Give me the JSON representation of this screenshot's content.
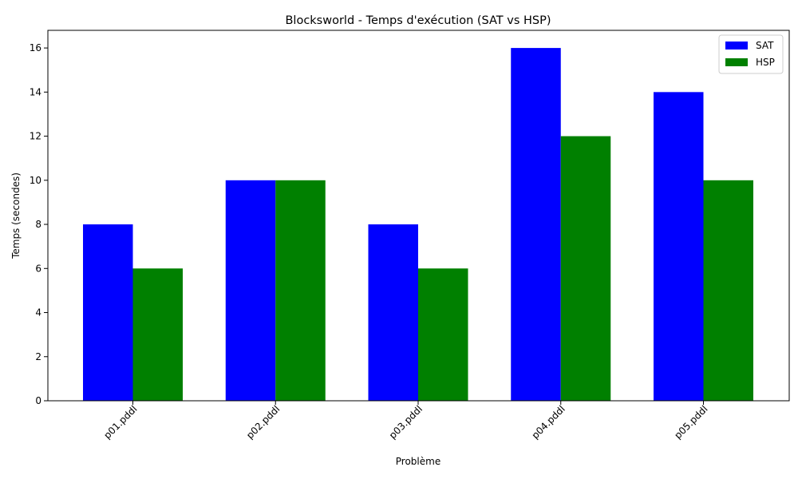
{
  "chart_data": {
    "type": "bar",
    "title": "Blocksworld - Temps d'exécution (SAT vs HSP)",
    "xlabel": "Problème",
    "ylabel": "Temps (secondes)",
    "categories": [
      "p01.pddl",
      "p02.pddl",
      "p03.pddl",
      "p04.pddl",
      "p05.pddl"
    ],
    "series": [
      {
        "name": "SAT",
        "values": [
          8,
          10,
          8,
          16,
          14
        ],
        "color": "#0000ff"
      },
      {
        "name": "HSP",
        "values": [
          6,
          10,
          6,
          12,
          10
        ],
        "color": "#008000"
      }
    ],
    "ylim": [
      0,
      16.8
    ],
    "yticks": [
      0,
      2,
      4,
      6,
      8,
      10,
      12,
      14,
      16
    ],
    "grid": false,
    "legend_position": "top-right",
    "xtick_rotation": 45
  }
}
